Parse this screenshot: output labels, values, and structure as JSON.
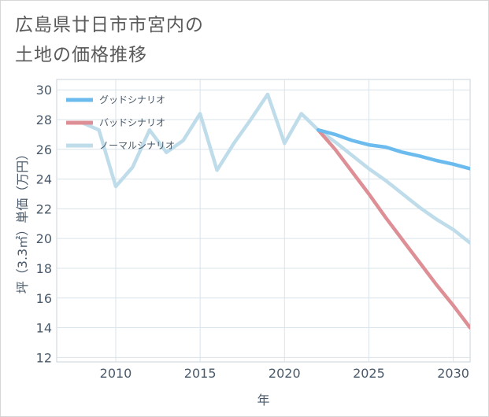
{
  "title": {
    "line1": "広島県廿日市市宮内の",
    "line2": "土地の価格推移"
  },
  "chart_data": {
    "type": "line",
    "title": "広島県廿日市市宮内の土地の価格推移",
    "xlabel": "年",
    "ylabel": "坪（3.3㎡）単価（万円）",
    "xlim": [
      2006.5,
      2031
    ],
    "ylim": [
      11.7,
      30.7
    ],
    "xticks": [
      2010,
      2015,
      2020,
      2025,
      2030
    ],
    "yticks": [
      12,
      14,
      16,
      18,
      20,
      22,
      24,
      26,
      28,
      30
    ],
    "grid": true,
    "legend_position": "top-left",
    "series": [
      {
        "name": "グッドシナリオ",
        "color": "#6cbbee",
        "x": [
          2022,
          2023,
          2024,
          2025,
          2026,
          2027,
          2028,
          2029,
          2030,
          2031
        ],
        "y": [
          27.3,
          27.0,
          26.6,
          26.3,
          26.15,
          25.8,
          25.55,
          25.25,
          25.0,
          24.7
        ]
      },
      {
        "name": "バッドシナリオ",
        "color": "#dd8f95",
        "x": [
          2022,
          2023,
          2024,
          2025,
          2026,
          2027,
          2028,
          2029,
          2030,
          2031
        ],
        "y": [
          27.3,
          26.0,
          24.5,
          23.0,
          21.4,
          19.9,
          18.4,
          16.9,
          15.5,
          14.0
        ]
      },
      {
        "name": "ノーマルシナリオ",
        "color": "#bfdcea",
        "x": [
          2008,
          2009,
          2010,
          2011,
          2012,
          2013,
          2014,
          2015,
          2016,
          2017,
          2018,
          2019,
          2020,
          2021,
          2022,
          2023,
          2024,
          2025,
          2026,
          2027,
          2028,
          2029,
          2030,
          2031
        ],
        "y": [
          27.8,
          27.3,
          23.5,
          24.8,
          27.3,
          25.8,
          26.6,
          28.4,
          24.6,
          26.4,
          28.0,
          29.7,
          26.4,
          28.4,
          27.3,
          26.5,
          25.6,
          24.7,
          23.9,
          23.0,
          22.1,
          21.3,
          20.6,
          19.7
        ]
      }
    ]
  }
}
